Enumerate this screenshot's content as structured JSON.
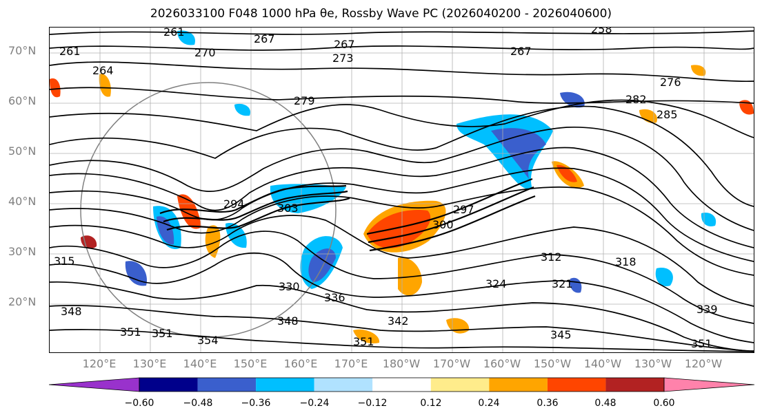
{
  "title": "2026033100 F048 1000 hPa θe, Rossby Wave PC (2026040200 - 2026040600)",
  "lat_labels": [
    "70°N",
    "60°N",
    "50°N",
    "40°N",
    "30°N",
    "20°N"
  ],
  "lon_labels": [
    "120°E",
    "130°E",
    "140°E",
    "150°E",
    "160°E",
    "170°E",
    "180°W",
    "170°W",
    "160°W",
    "150°W",
    "140°W",
    "130°W",
    "120°W"
  ],
  "colorbar": {
    "ticks": [
      "−0.60",
      "−0.48",
      "−0.36",
      "−0.24",
      "−0.12",
      "0.12",
      "0.24",
      "0.36",
      "0.48",
      "0.60"
    ],
    "colors": [
      "#9932cc",
      "#00008b",
      "#3a5fcd",
      "#00bfff",
      "#b0e2ff",
      "#ffffff",
      "#ffec8b",
      "#ffa500",
      "#ff4500",
      "#b22222",
      "#ff82ab"
    ]
  },
  "contour_labels": [
    "261",
    "267",
    "270",
    "264",
    "261",
    "273",
    "267",
    "267",
    "258",
    "276",
    "282",
    "285",
    "279",
    "297",
    "300",
    "294",
    "303",
    "312",
    "318",
    "324",
    "321",
    "330",
    "336",
    "342",
    "345",
    "348",
    "351",
    "354",
    "351",
    "339",
    "351",
    "348",
    "351",
    "315"
  ],
  "colors": {
    "contour": "#000000",
    "circle": "#808080",
    "axis_label": "#808080"
  }
}
